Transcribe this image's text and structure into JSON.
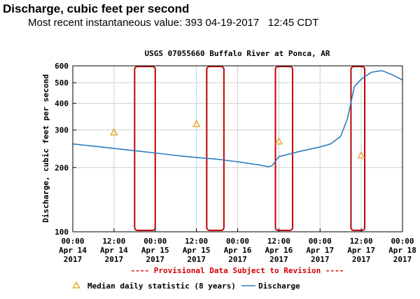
{
  "header": {
    "title": "Discharge, cubic feet per second",
    "subtitle": "Most recent instantaneous value: 393 04-19-2017   12:45 CDT"
  },
  "colors": {
    "discharge_line": "#2f7bbf",
    "median_marker": "#e8a020",
    "highlight_box": "#c00000",
    "provisional_text": "#d40000",
    "grid": "#cfcfcf"
  },
  "chart_data": {
    "type": "line",
    "title": "USGS 07055660 Buffalo River at Ponca, AR",
    "ylabel": "Discharge, cubic feet per second",
    "xlabel": "",
    "yscale": "log",
    "ylim": [
      100,
      600
    ],
    "yticks": [
      100,
      200,
      300,
      400,
      500,
      600
    ],
    "xlim": [
      "2017-04-14 00:00",
      "2017-04-18 00:00"
    ],
    "xticks": [
      {
        "line1": "00:00",
        "line2": "Apr 14",
        "line3": "2017"
      },
      {
        "line1": "12:00",
        "line2": "Apr 14",
        "line3": "2017"
      },
      {
        "line1": "00:00",
        "line2": "Apr 15",
        "line3": "2017"
      },
      {
        "line1": "12:00",
        "line2": "Apr 15",
        "line3": "2017"
      },
      {
        "line1": "00:00",
        "line2": "Apr 16",
        "line3": "2017"
      },
      {
        "line1": "12:00",
        "line2": "Apr 16",
        "line3": "2017"
      },
      {
        "line1": "00:00",
        "line2": "Apr 17",
        "line3": "2017"
      },
      {
        "line1": "12:00",
        "line2": "Apr 17",
        "line3": "2017"
      },
      {
        "line1": "00:00",
        "line2": "Apr 18",
        "line3": "2017"
      }
    ],
    "series": [
      {
        "name": "Discharge",
        "x": [
          "2017-04-14 00:00",
          "2017-04-14 06:00",
          "2017-04-14 12:00",
          "2017-04-14 18:00",
          "2017-04-15 00:00",
          "2017-04-15 06:00",
          "2017-04-15 12:00",
          "2017-04-15 18:00",
          "2017-04-16 00:00",
          "2017-04-16 06:00",
          "2017-04-16 09:00",
          "2017-04-16 10:00",
          "2017-04-16 12:00",
          "2017-04-16 18:00",
          "2017-04-17 00:00",
          "2017-04-17 03:00",
          "2017-04-17 06:00",
          "2017-04-17 08:00",
          "2017-04-17 10:00",
          "2017-04-17 12:00",
          "2017-04-17 15:00",
          "2017-04-17 18:00",
          "2017-04-17 21:00",
          "2017-04-18 00:00"
        ],
        "y": [
          258,
          252,
          246,
          240,
          234,
          228,
          223,
          219,
          213,
          206,
          202,
          204,
          225,
          238,
          250,
          258,
          280,
          340,
          480,
          520,
          560,
          570,
          545,
          515
        ]
      },
      {
        "name": "Median daily statistic (8 years)",
        "x": [
          "2017-04-14 12:00",
          "2017-04-15 12:00",
          "2017-04-16 12:00",
          "2017-04-17 12:00"
        ],
        "y": [
          292,
          320,
          265,
          228
        ]
      }
    ],
    "highlight_windows": [
      [
        "2017-04-14 18:00",
        "2017-04-15 00:00"
      ],
      [
        "2017-04-15 15:00",
        "2017-04-15 20:00"
      ],
      [
        "2017-04-16 11:00",
        "2017-04-16 16:00"
      ],
      [
        "2017-04-17 09:00",
        "2017-04-17 13:00"
      ]
    ],
    "annotation": "---- Provisional Data Subject to Revision ----",
    "legend": [
      {
        "label": "Median daily statistic (8 years)",
        "symbol": "triangle"
      },
      {
        "label": "Discharge",
        "symbol": "line"
      }
    ],
    "legend_position": "bottom",
    "grid": true
  }
}
